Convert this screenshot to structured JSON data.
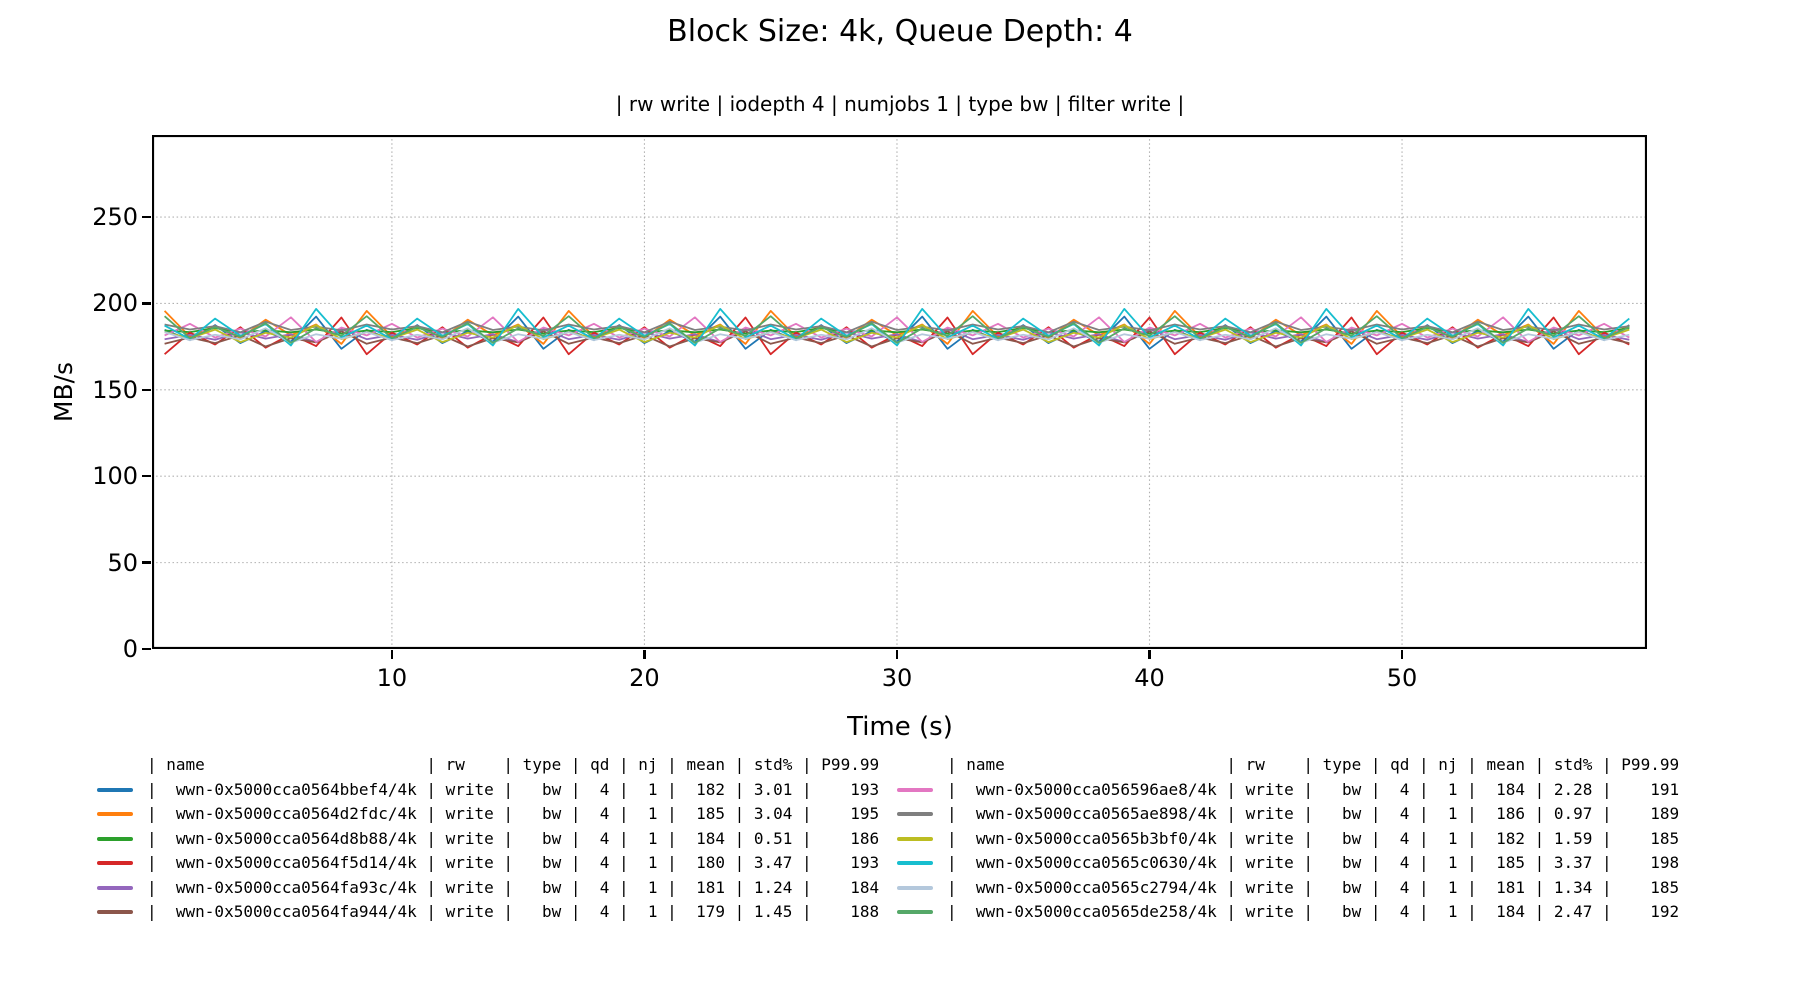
{
  "title": "Block Size: 4k, Queue Depth: 4",
  "subtitle": "| rw write | iodepth 4 | numjobs 1 | type bw | filter write |",
  "chart_data": {
    "type": "line",
    "title": "Block Size: 4k, Queue Depth: 4",
    "subtitle": "| rw write | iodepth 4 | numjobs 1 | type bw | filter write |",
    "xlabel": "Time (s)",
    "ylabel": "MB/s",
    "xlim": [
      0.5,
      59.7
    ],
    "ylim": [
      0,
      297.5
    ],
    "xticks": [
      10,
      20,
      30,
      40,
      50
    ],
    "yticks": [
      0,
      50,
      100,
      150,
      200,
      250
    ],
    "grid": "dotted",
    "grid_color": "#b0b0b0",
    "x_start": 1,
    "x_step": 1,
    "n_points": 59,
    "noise_pattern": [
      0.5,
      -0.9,
      1.9,
      -0.6,
      0.35,
      -1.5,
      1.0,
      -0.75
    ],
    "legend": {
      "position": "below",
      "ncol": 2,
      "columns": [
        "name",
        "rw",
        "type",
        "qd",
        "nj",
        "mean",
        "std%",
        "P99.99"
      ]
    },
    "series": [
      {
        "name": "wwn-0x5000cca0564bbef4/4k",
        "color": "#1f77b4",
        "rw": "write",
        "io_type": "bw",
        "qd": 4,
        "nj": 1,
        "mean": 182,
        "std_pct": "3.01",
        "p99_99": 193,
        "stride": 3,
        "phase": 0
      },
      {
        "name": "wwn-0x5000cca0564d2fdc/4k",
        "color": "#ff7f0e",
        "rw": "write",
        "io_type": "bw",
        "qd": 4,
        "nj": 1,
        "mean": 185,
        "std_pct": "3.04",
        "p99_99": 195,
        "stride": 5,
        "phase": 2
      },
      {
        "name": "wwn-0x5000cca0564d8b88/4k",
        "color": "#2ca02c",
        "rw": "write",
        "io_type": "bw",
        "qd": 4,
        "nj": 1,
        "mean": 184,
        "std_pct": "0.51",
        "p99_99": 186,
        "stride": 7,
        "phase": 4
      },
      {
        "name": "wwn-0x5000cca0564f5d14/4k",
        "color": "#d62728",
        "rw": "write",
        "io_type": "bw",
        "qd": 4,
        "nj": 1,
        "mean": 180,
        "std_pct": "3.47",
        "p99_99": 193,
        "stride": 3,
        "phase": 5
      },
      {
        "name": "wwn-0x5000cca0564fa93c/4k",
        "color": "#9467bd",
        "rw": "write",
        "io_type": "bw",
        "qd": 4,
        "nj": 1,
        "mean": 181,
        "std_pct": "1.24",
        "p99_99": 184,
        "stride": 5,
        "phase": 7
      },
      {
        "name": "wwn-0x5000cca0564fa944/4k",
        "color": "#8c564b",
        "rw": "write",
        "io_type": "bw",
        "qd": 4,
        "nj": 1,
        "mean": 179,
        "std_pct": "1.45",
        "p99_99": 188,
        "stride": 7,
        "phase": 1
      },
      {
        "name": "wwn-0x5000cca056596ae8/4k",
        "color": "#e377c2",
        "rw": "write",
        "io_type": "bw",
        "qd": 4,
        "nj": 1,
        "mean": 184,
        "std_pct": "2.28",
        "p99_99": 191,
        "stride": 3,
        "phase": 3
      },
      {
        "name": "wwn-0x5000cca0565ae898/4k",
        "color": "#7f7f7f",
        "rw": "write",
        "io_type": "bw",
        "qd": 4,
        "nj": 1,
        "mean": 186,
        "std_pct": "0.97",
        "p99_99": 189,
        "stride": 5,
        "phase": 6
      },
      {
        "name": "wwn-0x5000cca0565b3bf0/4k",
        "color": "#bcbd22",
        "rw": "write",
        "io_type": "bw",
        "qd": 4,
        "nj": 1,
        "mean": 182,
        "std_pct": "1.59",
        "p99_99": 185,
        "stride": 7,
        "phase": 0
      },
      {
        "name": "wwn-0x5000cca0565c0630/4k",
        "color": "#17becf",
        "rw": "write",
        "io_type": "bw",
        "qd": 4,
        "nj": 1,
        "mean": 185,
        "std_pct": "3.37",
        "p99_99": 198,
        "stride": 5,
        "phase": 4
      },
      {
        "name": "wwn-0x5000cca0565c2794/4k",
        "color": "#b4c8dc",
        "rw": "write",
        "io_type": "bw",
        "qd": 4,
        "nj": 1,
        "mean": 181,
        "std_pct": "1.34",
        "p99_99": 185,
        "stride": 3,
        "phase": 6
      },
      {
        "name": "wwn-0x5000cca0565de258/4k",
        "color": "#55a868",
        "rw": "write",
        "io_type": "bw",
        "qd": 4,
        "nj": 1,
        "mean": 184,
        "std_pct": "2.47",
        "p99_99": 192,
        "stride": 7,
        "phase": 2
      }
    ]
  }
}
